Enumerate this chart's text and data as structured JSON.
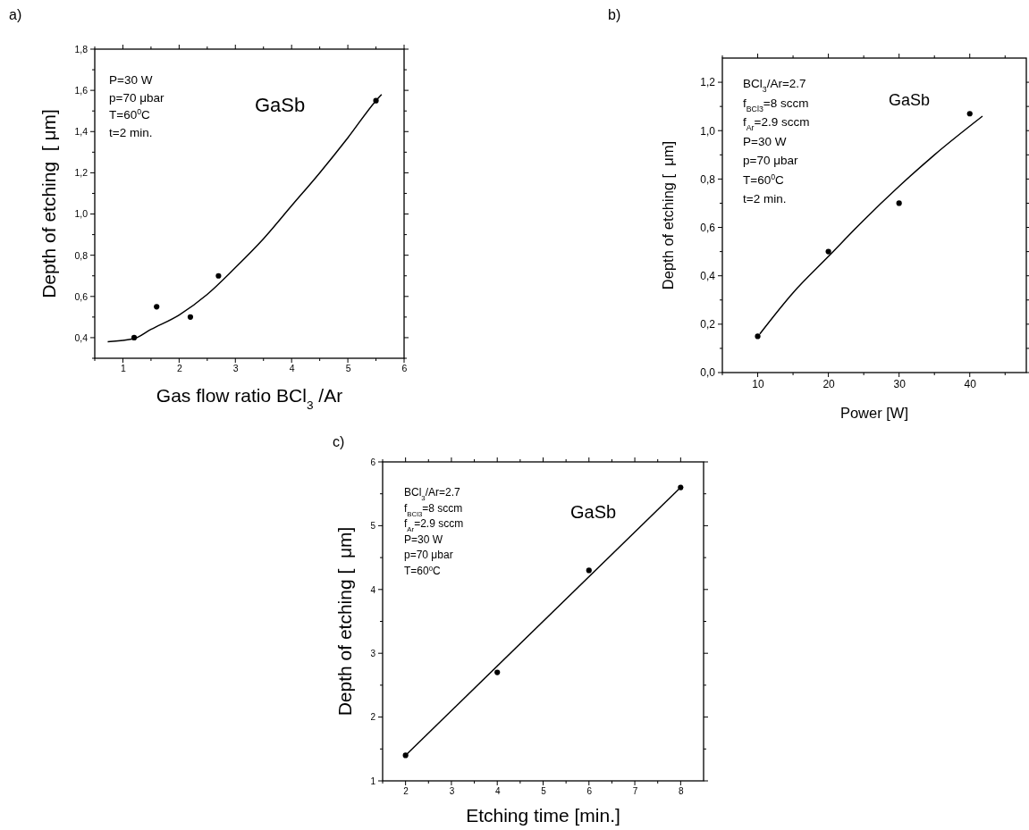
{
  "chart_data": [
    {
      "type": "scatter",
      "title": "a)",
      "xlabel": "Gas flow ratio BCl$_{3}$ /Ar",
      "ylabel": "Depth of etching  [ μm]",
      "xlim": [
        0.5,
        6
      ],
      "ylim": [
        0.3,
        1.8
      ],
      "xticks": [
        {
          "value": 0.5,
          "label": null
        },
        1,
        {
          "value": 1.5,
          "label": null
        },
        2,
        {
          "value": 2.5,
          "label": null
        },
        3,
        {
          "value": 3.5,
          "label": null
        },
        4,
        {
          "value": 4.5,
          "label": null
        },
        5,
        {
          "value": 5.5,
          "label": null
        },
        6
      ],
      "yticks": [
        {
          "value": 0.3,
          "label": null
        },
        {
          "value": 0.4,
          "label": "0,4"
        },
        {
          "value": 0.5,
          "label": null
        },
        {
          "value": 0.6,
          "label": "0,6"
        },
        {
          "value": 0.7,
          "label": null
        },
        {
          "value": 0.8,
          "label": "0,8"
        },
        {
          "value": 0.9,
          "label": null
        },
        {
          "value": 1.0,
          "label": "1,0"
        },
        {
          "value": 1.1,
          "label": null
        },
        {
          "value": 1.2,
          "label": "1,2"
        },
        {
          "value": 1.3,
          "label": null
        },
        {
          "value": 1.4,
          "label": "1,4"
        },
        {
          "value": 1.5,
          "label": null
        },
        {
          "value": 1.6,
          "label": "1,6"
        },
        {
          "value": 1.7,
          "label": null
        },
        {
          "value": 1.8,
          "label": "1,8"
        }
      ],
      "annotations": [
        "P=30 W",
        "p=70 μbar",
        "T=60$^{0}$C",
        "t=2 min.",
        "GaSb"
      ],
      "series": [
        {
          "marker": "circle",
          "color": "#000000",
          "x": [
            1.2,
            1.6,
            2.2,
            2.7,
            5.5
          ],
          "values": [
            0.4,
            0.55,
            0.5,
            0.7,
            1.55
          ]
        },
        {
          "type": "line",
          "color": "#000000",
          "x": [
            0.73,
            1.2,
            1.5,
            2,
            2.5,
            3,
            3.5,
            4,
            4.5,
            5,
            5.5,
            5.6
          ],
          "values": [
            0.38,
            0.395,
            0.44,
            0.51,
            0.61,
            0.74,
            0.88,
            1.04,
            1.2,
            1.37,
            1.55,
            1.58
          ]
        }
      ]
    },
    {
      "type": "scatter",
      "title": "b)",
      "xlabel": "Power [W]",
      "ylabel": "Depth of etching [  μm]",
      "xlim": [
        5,
        48
      ],
      "ylim": [
        0,
        1.3
      ],
      "xticks": [
        {
          "value": 5,
          "label": null
        },
        10,
        {
          "value": 15,
          "label": null
        },
        20,
        {
          "value": 25,
          "label": null
        },
        30,
        {
          "value": 35,
          "label": null
        },
        40,
        {
          "value": 45,
          "label": null
        }
      ],
      "yticks": [
        {
          "value": 0,
          "label": "0,0"
        },
        {
          "value": 0.1,
          "label": null
        },
        {
          "value": 0.2,
          "label": "0,2"
        },
        {
          "value": 0.3,
          "label": null
        },
        {
          "value": 0.4,
          "label": "0,4"
        },
        {
          "value": 0.5,
          "label": null
        },
        {
          "value": 0.6,
          "label": "0,6"
        },
        {
          "value": 0.7,
          "label": null
        },
        {
          "value": 0.8,
          "label": "0,8"
        },
        {
          "value": 0.9,
          "label": null
        },
        {
          "value": 1.0,
          "label": "1,0"
        },
        {
          "value": 1.1,
          "label": null
        },
        {
          "value": 1.2,
          "label": "1,2"
        }
      ],
      "annotations": [
        "BCl$_{3}$/Ar=2.7",
        "f$_{BCl3}$=8 sccm",
        "f$_{Ar}$=2.9 sccm",
        "P=30 W",
        "p=70 μbar",
        "T=60$^{0}$C",
        "t=2 min.",
        "GaSb"
      ],
      "series": [
        {
          "marker": "circle",
          "color": "#000000",
          "x": [
            10,
            20,
            30,
            40
          ],
          "values": [
            0.15,
            0.5,
            0.7,
            1.07
          ]
        },
        {
          "type": "line",
          "color": "#000000",
          "x": [
            10.3,
            15,
            20,
            25,
            30,
            35,
            41.8
          ],
          "values": [
            0.16,
            0.33,
            0.48,
            0.63,
            0.77,
            0.9,
            1.06
          ]
        }
      ]
    },
    {
      "type": "scatter",
      "title": "c)",
      "xlabel": "Etching time [min.]",
      "ylabel": "Depth of etching [  μm]",
      "xlim": [
        1.5,
        8.5
      ],
      "ylim": [
        1,
        6
      ],
      "xticks": [
        {
          "value": 1.5,
          "label": null
        },
        2,
        {
          "value": 2.5,
          "label": null
        },
        3,
        {
          "value": 3.5,
          "label": null
        },
        4,
        {
          "value": 4.5,
          "label": null
        },
        5,
        {
          "value": 5.5,
          "label": null
        },
        6,
        {
          "value": 6.5,
          "label": null
        },
        7,
        {
          "value": 7.5,
          "label": null
        },
        8
      ],
      "yticks": [
        1,
        {
          "value": 1.5,
          "label": null
        },
        2,
        {
          "value": 2.5,
          "label": null
        },
        3,
        {
          "value": 3.5,
          "label": null
        },
        4,
        {
          "value": 4.5,
          "label": null
        },
        5,
        {
          "value": 5.5,
          "label": null
        },
        6
      ],
      "annotations": [
        "BCl$_{3}$/Ar=2.7",
        "f$_{BCl3}$=8 sccm",
        "f$_{Ar}$=2.9 sccm",
        "P=30 W",
        "p=70 μbar",
        "T=60$^{0}$C",
        "GaSb"
      ],
      "series": [
        {
          "marker": "circle",
          "color": "#000000",
          "x": [
            2,
            4,
            6,
            8
          ],
          "values": [
            1.4,
            2.7,
            4.3,
            5.6
          ]
        },
        {
          "type": "line",
          "color": "#000000",
          "x": [
            2,
            8
          ],
          "values": [
            1.4,
            5.6
          ]
        }
      ]
    }
  ]
}
